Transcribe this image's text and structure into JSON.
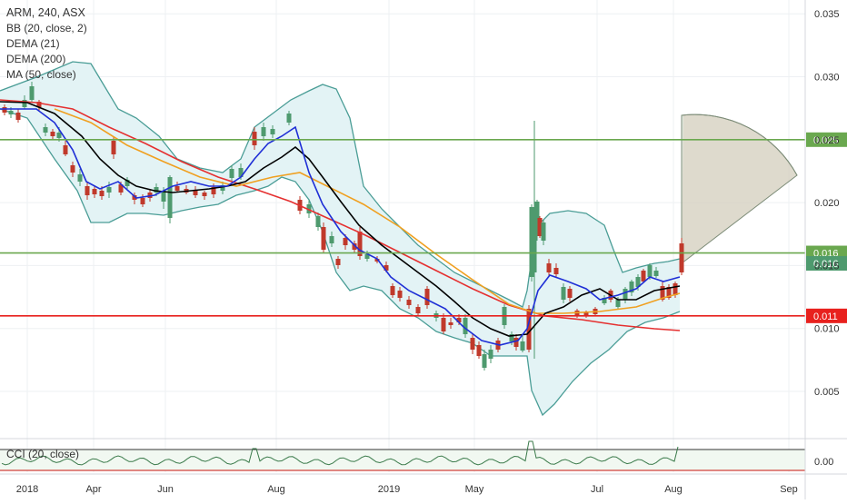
{
  "chart_data": {
    "type": "candlestick",
    "symbol_line": "ARM, 240, ASX",
    "indicators": [
      "BB (20, close, 2)",
      "DEMA (21)",
      "DEMA (200)",
      "MA (50, close)"
    ],
    "cci_label": "CCI (20, close)",
    "y_ticks": [
      "0.035",
      "0.030",
      "0.025",
      "0.020",
      "0.015",
      "0.010",
      "0.005"
    ],
    "x_ticks": [
      "2018",
      "Apr",
      "Jun",
      "Aug",
      "2019",
      "May",
      "Jul",
      "Aug",
      "Sep"
    ],
    "cci_tick": "0.00",
    "ylim": [
      0.0,
      0.036
    ],
    "grid": true,
    "horizontal_lines": [
      {
        "value": 0.025,
        "color": "#6aa84f",
        "label": "0.025"
      },
      {
        "value": 0.016,
        "color": "#6aa84f",
        "label": "0.016"
      },
      {
        "value": 0.011,
        "color": "#e8211e",
        "label": "0.011"
      }
    ],
    "last_price_label": "0.016",
    "colors": {
      "up": "#4e9a6e",
      "down": "#c0392b",
      "bb": "#4a9d96",
      "bb_fill": "#e3f3f5",
      "dema21": "#1f2fd6",
      "dema200": "#000000",
      "ma50": "#f0a020",
      "long_ma": "#e53030",
      "fan": "#b5c6b0"
    }
  }
}
